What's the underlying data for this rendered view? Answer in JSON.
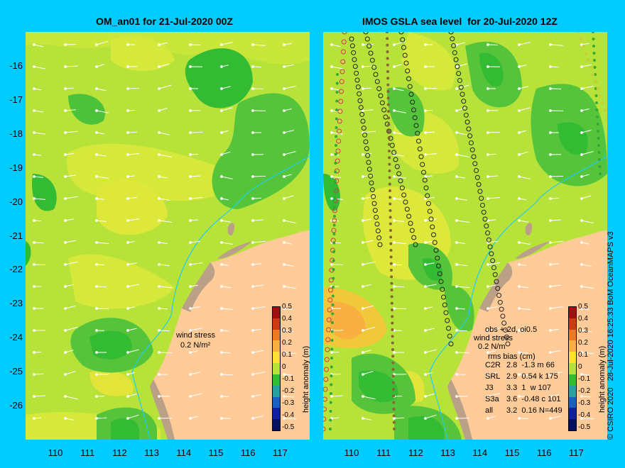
{
  "left_panel": {
    "title": "OM_an01 for 21-Jul-2020 00Z",
    "wind_stress_label": "wind stress",
    "wind_stress_value": "0.2 N/m²",
    "colorbar_title": "height anomaly (m)"
  },
  "right_panel": {
    "title": "IMOS GSLA sea level  for 20-Jul-2020 12Z",
    "wind_stress_label": "wind stress",
    "wind_stress_value": "0.2 N/m",
    "obs_header": "obs +-2d, oi0.5",
    "bias_header": "rms bias (cm)",
    "stats": [
      {
        "sat": "C2R",
        "vals": "2.8  -1.3 m 66"
      },
      {
        "sat": "SRL",
        "vals": "2.9  0.54 k 175"
      },
      {
        "sat": "J3",
        "vals": "3.3  1  w 107"
      },
      {
        "sat": "S3a",
        "vals": "3.6  -0.48 c 101"
      },
      {
        "sat": "all",
        "vals": "3.2  0.16 N=449"
      }
    ],
    "colorbar_title": "height anomaly (m)"
  },
  "y_ticks": [
    "-16",
    "-17",
    "-18",
    "-19",
    "-20",
    "-21",
    "-22",
    "-23",
    "-24",
    "-25",
    "-26"
  ],
  "x_ticks": [
    "110",
    "111",
    "112",
    "113",
    "114",
    "115",
    "116",
    "117"
  ],
  "colorbar_ticks": [
    "0.5",
    "0.4",
    "0.3",
    "0.2",
    "0.1",
    "0",
    "-0.1",
    "-0.2",
    "-0.3",
    "-0.4",
    "-0.5"
  ],
  "copyright": "© CSIRO 2020   28-Jul-2020 16:25:33 BoM OceanMAPS v3",
  "colors": {
    "background": "#00ccff",
    "land": "#ffcc99",
    "shoreline_rock": "#bba088",
    "field_mid": "#b7e23a",
    "field_low": "#33bb33",
    "field_high": "#ffe033",
    "isobath": "#22ccee"
  }
}
